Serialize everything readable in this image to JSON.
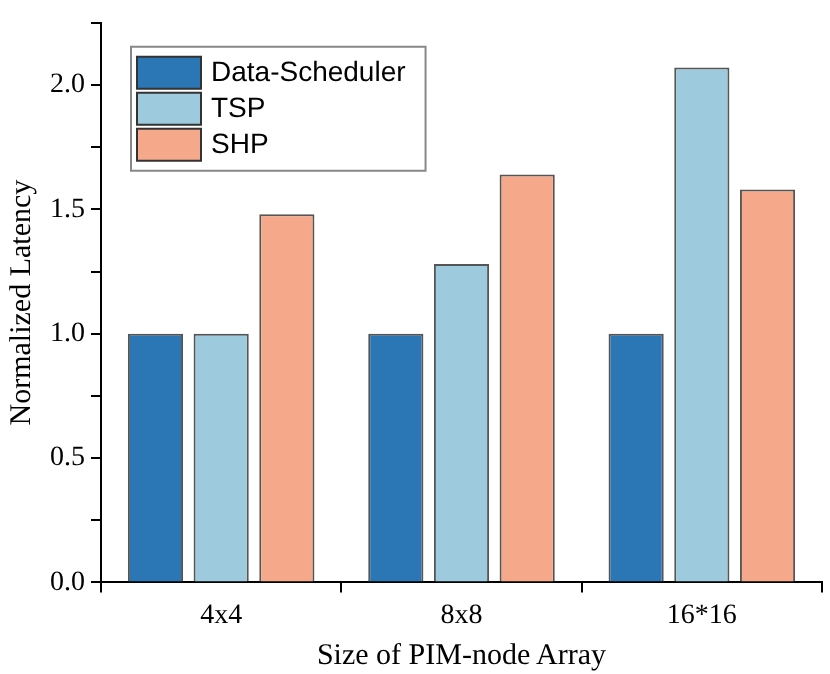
{
  "chart_data": {
    "type": "bar",
    "xlabel": "Size of PIM-node Array",
    "ylabel": "Normalized Latency",
    "categories": [
      "4x4",
      "8x8",
      "16*16"
    ],
    "series": [
      {
        "name": "Data-Scheduler",
        "color": "#2b77b5",
        "values": [
          1.0,
          1.0,
          1.0
        ]
      },
      {
        "name": "TSP",
        "color": "#9dcbdd",
        "values": [
          1.0,
          1.28,
          2.07
        ]
      },
      {
        "name": "SHP",
        "color": "#f6a98a",
        "values": [
          1.48,
          1.64,
          1.58
        ]
      }
    ],
    "ylim": [
      0,
      2.25
    ],
    "yticks": [
      {
        "value": 0,
        "label": "0.0"
      },
      {
        "value": 0.25,
        "label": null
      },
      {
        "value": 0.5,
        "label": "0.5"
      },
      {
        "value": 0.75,
        "label": null
      },
      {
        "value": 1,
        "label": "1.0"
      },
      {
        "value": 1.25,
        "label": null
      },
      {
        "value": 1.5,
        "label": "1.5"
      },
      {
        "value": 1.75,
        "label": null
      },
      {
        "value": 2,
        "label": "2.0"
      },
      {
        "value": 2.25,
        "label": null
      }
    ],
    "grid": false,
    "legend": "top left"
  }
}
